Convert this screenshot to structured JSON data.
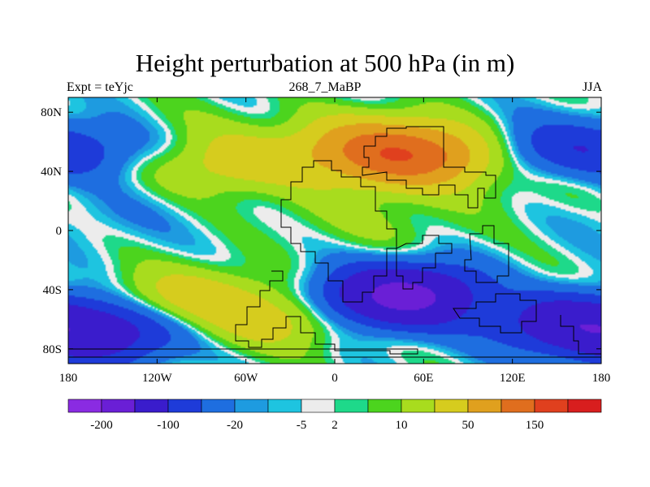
{
  "title": "Height perturbation at 500 hPa (in m)",
  "left_label": "Expt = teYjc",
  "center_label": "268_7_MaBP",
  "right_label": "JJA",
  "chart_data": {
    "type": "heatmap",
    "title": "Height perturbation at 500 hPa (in m)",
    "xlabel": "",
    "ylabel": "",
    "xlim": [
      -180,
      180
    ],
    "ylim": [
      -90,
      90
    ],
    "x_ticks": [
      {
        "value": -180,
        "label": "180"
      },
      {
        "value": -120,
        "label": "120W"
      },
      {
        "value": -60,
        "label": "60W"
      },
      {
        "value": 0,
        "label": "0"
      },
      {
        "value": 60,
        "label": "60E"
      },
      {
        "value": 120,
        "label": "120E"
      },
      {
        "value": 180,
        "label": "180"
      }
    ],
    "y_ticks": [
      {
        "value": 80,
        "label": "80N"
      },
      {
        "value": 40,
        "label": "40N"
      },
      {
        "value": 0,
        "label": "0"
      },
      {
        "value": -40,
        "label": "40S"
      },
      {
        "value": -80,
        "label": "80S"
      }
    ],
    "colorbar": {
      "colors": [
        "#8a2be2",
        "#6a1fd6",
        "#3a1ccc",
        "#1e3bd9",
        "#1e6ee0",
        "#1e9be0",
        "#1ec4e0",
        "#ececec",
        "#1ed98a",
        "#4cd41e",
        "#a8dc1e",
        "#d6cc1e",
        "#e0a01e",
        "#e06e1e",
        "#e0401e",
        "#d81e1e"
      ],
      "labels": [
        {
          "index": 1,
          "text": "-200"
        },
        {
          "index": 3,
          "text": "-100"
        },
        {
          "index": 5,
          "text": "-20"
        },
        {
          "index": 7,
          "text": "-5"
        },
        {
          "index": 8,
          "text": "2"
        },
        {
          "index": 10,
          "text": "10"
        },
        {
          "index": 12,
          "text": "50"
        },
        {
          "index": 14,
          "text": "150"
        }
      ]
    },
    "field_features": [
      {
        "lon": 50,
        "lat": 50,
        "value": 150
      },
      {
        "lon": 20,
        "lat": 60,
        "value": 50
      },
      {
        "lon": -100,
        "lat": 70,
        "value": 10
      },
      {
        "lon": -70,
        "lat": 45,
        "value": 50
      },
      {
        "lon": 150,
        "lat": 55,
        "value": -50
      },
      {
        "lon": -160,
        "lat": 55,
        "value": -30
      },
      {
        "lon": -150,
        "lat": 10,
        "value": -10
      },
      {
        "lon": 0,
        "lat": 15,
        "value": 10
      },
      {
        "lon": 40,
        "lat": 0,
        "value": 10
      },
      {
        "lon": -100,
        "lat": -45,
        "value": 50
      },
      {
        "lon": -40,
        "lat": -60,
        "value": 50
      },
      {
        "lon": 50,
        "lat": -45,
        "value": -200
      },
      {
        "lon": 150,
        "lat": -60,
        "value": -100
      },
      {
        "lon": -160,
        "lat": -70,
        "value": -100
      },
      {
        "lon": 100,
        "lat": -50,
        "value": 50
      },
      {
        "lon": 130,
        "lat": 30,
        "value": 10
      }
    ]
  }
}
